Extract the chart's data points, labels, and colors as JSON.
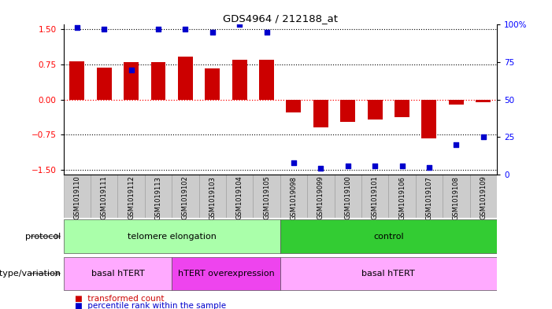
{
  "title": "GDS4964 / 212188_at",
  "samples": [
    "GSM1019110",
    "GSM1019111",
    "GSM1019112",
    "GSM1019113",
    "GSM1019102",
    "GSM1019103",
    "GSM1019104",
    "GSM1019105",
    "GSM1019098",
    "GSM1019099",
    "GSM1019100",
    "GSM1019101",
    "GSM1019106",
    "GSM1019107",
    "GSM1019108",
    "GSM1019109"
  ],
  "bar_values": [
    0.82,
    0.68,
    0.8,
    0.8,
    0.92,
    0.66,
    0.85,
    0.85,
    -0.28,
    -0.6,
    -0.48,
    -0.42,
    -0.38,
    -0.82,
    -0.1,
    -0.05
  ],
  "percentile_values": [
    98,
    97,
    70,
    97,
    97,
    95,
    100,
    95,
    8,
    4,
    6,
    6,
    6,
    5,
    20,
    25
  ],
  "ylim": [
    -1.6,
    1.6
  ],
  "yticks_left": [
    -1.5,
    -0.75,
    0,
    0.75,
    1.5
  ],
  "right_yticks": [
    0,
    25,
    50,
    75,
    100
  ],
  "bar_color": "#cc0000",
  "dot_color": "#0000cc",
  "protocol_groups": [
    {
      "label": "telomere elongation",
      "start": 0,
      "end": 8,
      "color": "#aaffaa"
    },
    {
      "label": "control",
      "start": 8,
      "end": 16,
      "color": "#33cc33"
    }
  ],
  "genotype_groups": [
    {
      "label": "basal hTERT",
      "start": 0,
      "end": 4,
      "color": "#ffaaff"
    },
    {
      "label": "hTERT overexpression",
      "start": 4,
      "end": 8,
      "color": "#ee44ee"
    },
    {
      "label": "basal hTERT",
      "start": 8,
      "end": 16,
      "color": "#ffaaff"
    }
  ],
  "legend_items": [
    {
      "color": "#cc0000",
      "label": "transformed count"
    },
    {
      "color": "#0000cc",
      "label": "percentile rank within the sample"
    }
  ],
  "bar_width": 0.55
}
